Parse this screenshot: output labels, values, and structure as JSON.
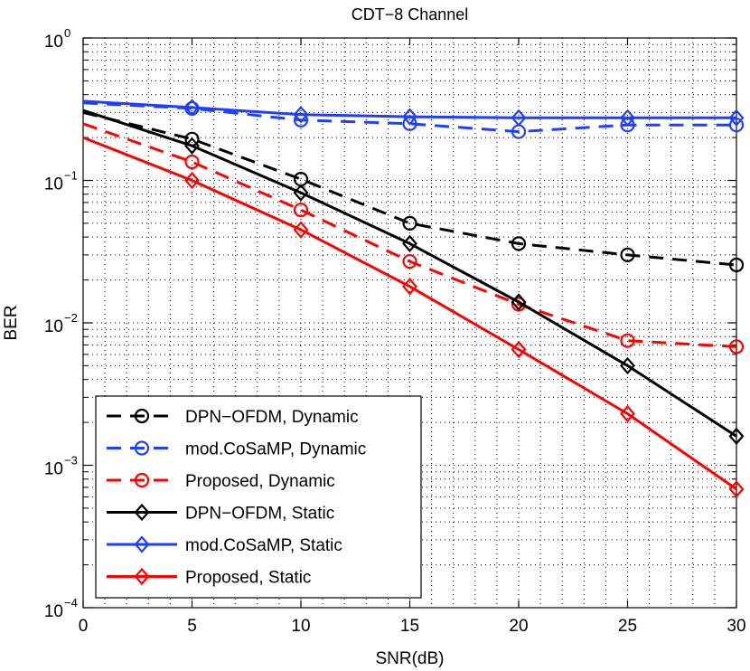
{
  "chart_data": {
    "type": "line",
    "title": "CDT−8 Channel",
    "xlabel": "SNR(dB)",
    "ylabel": "BER",
    "xlim": [
      0,
      30
    ],
    "ylim": [
      0.0001,
      1
    ],
    "yscale": "log",
    "grid": true,
    "x_ticks": [
      0,
      5,
      10,
      15,
      20,
      25,
      30
    ],
    "x_tick_labels": [
      "0",
      "5",
      "10",
      "15",
      "20",
      "25",
      "30"
    ],
    "y_ticks": [
      0.0001,
      0.001,
      0.01,
      0.1,
      1
    ],
    "y_tick_labels": [
      {
        "base": "10",
        "exp": "−4"
      },
      {
        "base": "10",
        "exp": "−3"
      },
      {
        "base": "10",
        "exp": "−2"
      },
      {
        "base": "10",
        "exp": "−1"
      },
      {
        "base": "10",
        "exp": "0"
      }
    ],
    "legend_position": "bottom-left",
    "series": [
      {
        "name": "DPN−OFDM, Dynamic",
        "color": "#000000",
        "dash": "dashed",
        "marker": "circle",
        "x": [
          0,
          5,
          10,
          15,
          20,
          25,
          30
        ],
        "y": [
          0.3,
          0.195,
          0.102,
          0.05,
          0.036,
          0.03,
          0.0255
        ]
      },
      {
        "name": "mod.CoSaMP, Dynamic",
        "color": "#1f3fff",
        "dash": "dashed",
        "marker": "circle",
        "x": [
          0,
          5,
          10,
          15,
          20,
          25,
          30
        ],
        "y": [
          0.35,
          0.32,
          0.265,
          0.25,
          0.22,
          0.245,
          0.245
        ]
      },
      {
        "name": "Proposed, Dynamic",
        "color": "#ff0000",
        "dash": "dashed",
        "marker": "circle",
        "x": [
          0,
          5,
          10,
          15,
          20,
          25,
          30
        ],
        "y": [
          0.25,
          0.135,
          0.062,
          0.027,
          0.0135,
          0.0075,
          0.0068
        ]
      },
      {
        "name": "DPN−OFDM, Static",
        "color": "#000000",
        "dash": "solid",
        "marker": "diamond",
        "x": [
          0,
          5,
          10,
          15,
          20,
          25,
          30
        ],
        "y": [
          0.31,
          0.175,
          0.082,
          0.036,
          0.014,
          0.005,
          0.0016
        ]
      },
      {
        "name": "mod.CoSaMP, Static",
        "color": "#1f3fff",
        "dash": "solid",
        "marker": "diamond",
        "x": [
          0,
          5,
          10,
          15,
          20,
          25,
          30
        ],
        "y": [
          0.36,
          0.325,
          0.29,
          0.28,
          0.275,
          0.275,
          0.275
        ]
      },
      {
        "name": "Proposed, Static",
        "color": "#ff0000",
        "dash": "solid",
        "marker": "diamond",
        "x": [
          0,
          5,
          10,
          15,
          20,
          25,
          30
        ],
        "y": [
          0.2,
          0.1,
          0.045,
          0.018,
          0.0065,
          0.0023,
          0.00068
        ]
      }
    ]
  }
}
